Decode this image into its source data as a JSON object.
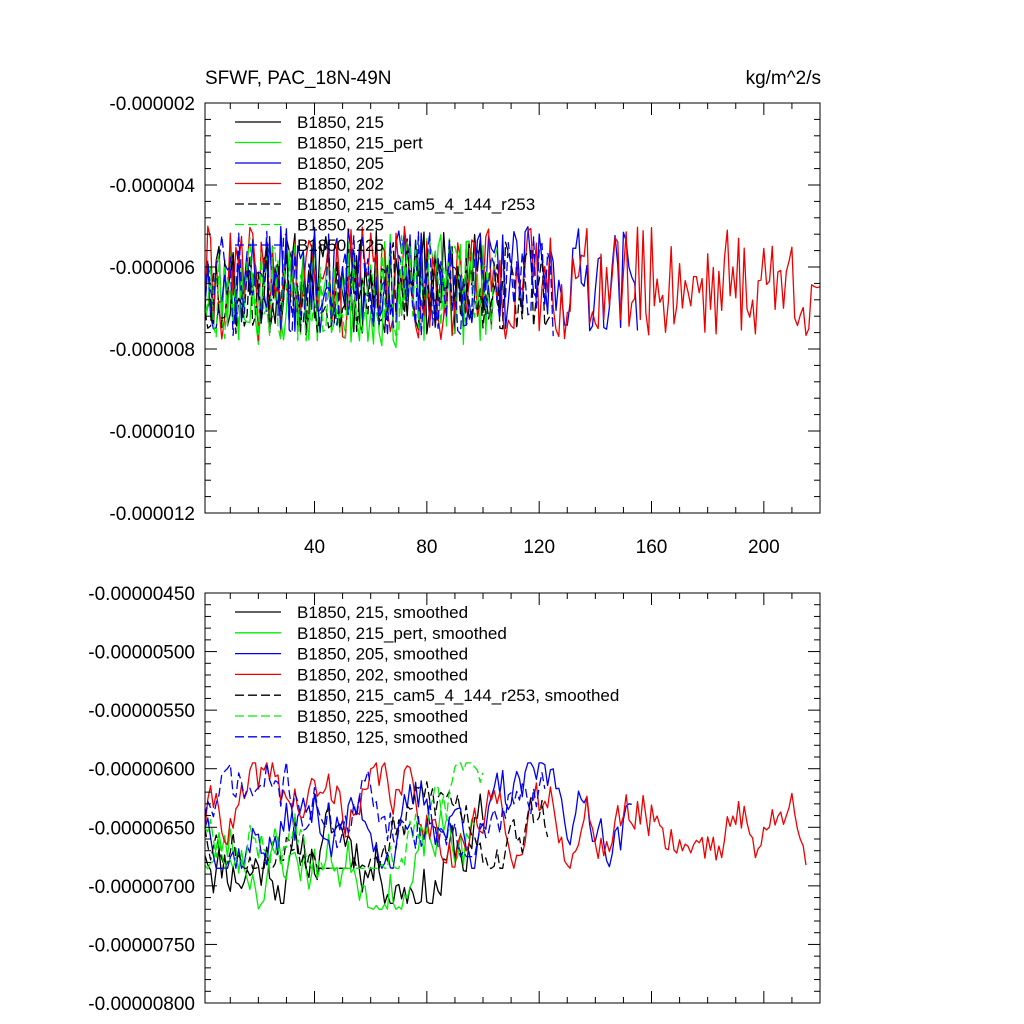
{
  "chart_data": [
    {
      "type": "line",
      "title": "SFWF, PAC_18N-49N",
      "units": "kg/m^2/s",
      "xlim": [
        1,
        220
      ],
      "ylim": [
        -1.2e-05,
        -2e-06
      ],
      "x_ticks": [
        40,
        80,
        120,
        160,
        200
      ],
      "y_ticks": [
        -1.2e-05,
        -1e-05,
        -8e-06,
        -6e-06,
        -4e-06,
        -2e-06
      ],
      "y_tick_labels": [
        "-0.000012",
        "-0.000010",
        "-0.000008",
        "-0.000006",
        "-0.000004",
        "-0.000002"
      ],
      "x_tick_labels": [
        "40",
        "80",
        "120",
        "160",
        "200"
      ],
      "legend_position": "top-left",
      "series": [
        {
          "name": "B1850, 215",
          "color": "#000000",
          "dash": "solid",
          "n": 107,
          "mean": -6.4e-06,
          "amp": 1.3e-06,
          "seed": 11
        },
        {
          "name": "B1850, 215_pert",
          "color": "#00ee00",
          "dash": "solid",
          "n": 102,
          "mean": -6.6e-06,
          "amp": 1.4e-06,
          "seed": 23
        },
        {
          "name": "B1850, 205",
          "color": "#0000ee",
          "dash": "solid",
          "n": 155,
          "mean": -6.3e-06,
          "amp": 1.3e-06,
          "seed": 37
        },
        {
          "name": "B1850, 202",
          "color": "#ee0000",
          "dash": "solid",
          "n": 220,
          "mean": -6.4e-06,
          "amp": 1.4e-06,
          "seed": 41
        },
        {
          "name": "B1850, 215_cam5_4_144_r253",
          "color": "#000000",
          "dash": "dashed",
          "n": 125,
          "mean": -6.5e-06,
          "amp": 1.2e-06,
          "seed": 53
        },
        {
          "name": "B1850, 225",
          "color": "#00ee00",
          "dash": "dashed",
          "n": 105,
          "mean": -6.5e-06,
          "amp": 1.3e-06,
          "seed": 67
        },
        {
          "name": "B1850, 125",
          "color": "#0000ee",
          "dash": "dashed",
          "n": 125,
          "mean": -6.4e-06,
          "amp": 1.3e-06,
          "seed": 71
        }
      ]
    },
    {
      "type": "line",
      "title": "",
      "xlim": [
        1,
        220
      ],
      "ylim": [
        -8e-06,
        -4.5e-06
      ],
      "y_ticks": [
        -8e-06,
        -7.5e-06,
        -7e-06,
        -6.5e-06,
        -6e-06,
        -5.5e-06,
        -5e-06,
        -4.5e-06
      ],
      "y_tick_labels": [
        "-0.00000800",
        "-0.00000750",
        "-0.00000700",
        "-0.00000650",
        "-0.00000600",
        "-0.00000550",
        "-0.00000500",
        "-0.00000450"
      ],
      "legend_position": "top-left",
      "series": [
        {
          "name": "B1850, 215, smoothed",
          "color": "#000000",
          "dash": "solid",
          "n": 100,
          "mean": -6.6e-06,
          "amp": 5.5e-07,
          "seed": 11
        },
        {
          "name": "B1850, 215_pert, smoothed",
          "color": "#00ee00",
          "dash": "solid",
          "n": 97,
          "mean": -6.7e-06,
          "amp": 5e-07,
          "seed": 23
        },
        {
          "name": "B1850, 205, smoothed",
          "color": "#0000ee",
          "dash": "solid",
          "n": 153,
          "mean": -6.4e-06,
          "amp": 4.5e-07,
          "seed": 37
        },
        {
          "name": "B1850, 202, smoothed",
          "color": "#ee0000",
          "dash": "solid",
          "n": 215,
          "mean": -6.4e-06,
          "amp": 4.5e-07,
          "seed": 41
        },
        {
          "name": "B1850, 215_cam5_4_144_r253, smoothed",
          "color": "#000000",
          "dash": "dashed",
          "n": 123,
          "mean": -6.4e-06,
          "amp": 4.5e-07,
          "seed": 53
        },
        {
          "name": "B1850, 225, smoothed",
          "color": "#00ee00",
          "dash": "dashed",
          "n": 100,
          "mean": -6.4e-06,
          "amp": 4.5e-07,
          "seed": 67
        },
        {
          "name": "B1850, 125, smoothed",
          "color": "#0000ee",
          "dash": "dashed",
          "n": 122,
          "mean": -6.3e-06,
          "amp": 4.5e-07,
          "seed": 71
        }
      ]
    }
  ]
}
